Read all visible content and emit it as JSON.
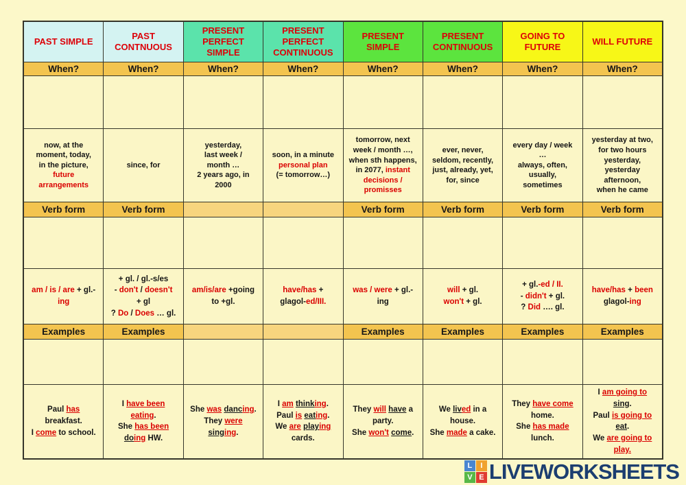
{
  "colors": {
    "page_bg": "#fcf8c9",
    "cell_bg": "#fbf6c6",
    "band_bg": "#f3c44f",
    "band_bg_light": "#f7d57e",
    "red_text": "#da0000",
    "black_text": "#151515",
    "header_red": "#dd0008",
    "border": "#35352a",
    "brand_navy": "#1c3e70"
  },
  "footer": {
    "brand": "LIVEWORKSHEETS",
    "logo_squares": [
      {
        "letter": "L",
        "color": "#4a86d1"
      },
      {
        "letter": "I",
        "color": "#f0a22e"
      },
      {
        "letter": "V",
        "color": "#58b847"
      },
      {
        "letter": "E",
        "color": "#e03c31"
      }
    ]
  },
  "table": {
    "band_labels": {
      "when": "When?",
      "verb": "Verb form",
      "examples": "Examples"
    },
    "columns": [
      {
        "name": "past-simple",
        "header": "PAST SIMPLE",
        "header_bg": "#d4f3f2",
        "has_verb_band": true,
        "has_examples_band": true,
        "time": [
          [
            [
              "now, at the",
              "k"
            ]
          ],
          [
            [
              "moment, today,",
              "k"
            ]
          ],
          [
            [
              "in the picture,",
              "k"
            ]
          ],
          [
            [
              "future",
              "r"
            ]
          ],
          [
            [
              "arrangements",
              "r"
            ]
          ]
        ],
        "verb_form": [
          [
            [
              "am / is / are",
              "r"
            ],
            [
              " + gl.-",
              "k"
            ]
          ],
          [
            [
              "ing",
              "r"
            ]
          ]
        ],
        "examples": [
          [
            [
              "Paul ",
              "k"
            ],
            [
              "has",
              "ru"
            ]
          ],
          [
            [
              "breakfast.",
              "k"
            ]
          ],
          [
            [
              "I ",
              "k"
            ],
            [
              "come",
              "ru"
            ],
            [
              " to school.",
              "k"
            ]
          ]
        ]
      },
      {
        "name": "past-continuous",
        "header": "PAST CONTNUOUS",
        "header_bg": "#d4f3f2",
        "has_verb_band": true,
        "has_examples_band": true,
        "time": [
          [
            [
              "since, for",
              "k"
            ]
          ]
        ],
        "verb_form": [
          [
            [
              "+ gl. / gl.-s/es",
              "k"
            ]
          ],
          [
            [
              "- ",
              "k"
            ],
            [
              "don't",
              "r"
            ],
            [
              " / ",
              "k"
            ],
            [
              "doesn't",
              "r"
            ]
          ],
          [
            [
              "+ gl",
              "k"
            ]
          ],
          [
            [
              "? ",
              "k"
            ],
            [
              "Do",
              "r"
            ],
            [
              " / ",
              "k"
            ],
            [
              "Does",
              "r"
            ],
            [
              " … gl.",
              "k"
            ]
          ]
        ],
        "examples": [
          [
            [
              "I ",
              "k"
            ],
            [
              "have been",
              "ru"
            ]
          ],
          [
            [
              "eating",
              "ru"
            ],
            [
              ".",
              "k"
            ]
          ],
          [
            [
              "She ",
              "k"
            ],
            [
              "has been",
              "ru"
            ]
          ],
          [
            [
              "do",
              "ku"
            ],
            [
              "ing",
              "ru"
            ],
            [
              " HW.",
              "k"
            ]
          ]
        ]
      },
      {
        "name": "present-perfect-simple",
        "header": "PRESENT PERFECT SIMPLE",
        "header_bg": "#5be3ab",
        "has_verb_band": false,
        "has_examples_band": false,
        "time": [
          [
            [
              "yesterday,",
              "k"
            ]
          ],
          [
            [
              "last week /",
              "k"
            ]
          ],
          [
            [
              "month …",
              "k"
            ]
          ],
          [
            [
              "2 years ago, in",
              "k"
            ]
          ],
          [
            [
              "2000",
              "k"
            ]
          ]
        ],
        "verb_form": [
          [
            [
              "am/is/are",
              "r"
            ],
            [
              " +going",
              "k"
            ]
          ],
          [
            [
              "to +gl.",
              "k"
            ]
          ]
        ],
        "examples": [
          [
            [
              "She ",
              "k"
            ],
            [
              "was",
              "ru"
            ],
            [
              " ",
              "k"
            ],
            [
              "danc",
              "ku"
            ],
            [
              "ing",
              "ru"
            ],
            [
              ".",
              "k"
            ]
          ],
          [
            [
              "They ",
              "k"
            ],
            [
              "were",
              "ru"
            ]
          ],
          [
            [
              "sing",
              "ku"
            ],
            [
              "ing",
              "ru"
            ],
            [
              ".",
              "k"
            ]
          ]
        ]
      },
      {
        "name": "present-perfect-continuous",
        "header": "PRESENT PERFECT CONTINUOUS",
        "header_bg": "#5be3ab",
        "has_verb_band": false,
        "has_examples_band": false,
        "time": [
          [
            [
              "soon, in a minute",
              "k"
            ]
          ],
          [
            [
              "personal plan",
              "r"
            ]
          ],
          [
            [
              "(= tomorrow…)",
              "k"
            ]
          ]
        ],
        "verb_form": [
          [
            [
              "have/has",
              "r"
            ],
            [
              " +",
              "k"
            ]
          ],
          [
            [
              "glagol-",
              "k"
            ],
            [
              "ed/III.",
              "r"
            ]
          ]
        ],
        "examples": [
          [
            [
              "I ",
              "k"
            ],
            [
              "am",
              "ru"
            ],
            [
              " ",
              "k"
            ],
            [
              "think",
              "ku"
            ],
            [
              "ing",
              "ru"
            ],
            [
              ".",
              "k"
            ]
          ],
          [
            [
              "Paul ",
              "k"
            ],
            [
              "is",
              "ru"
            ],
            [
              " ",
              "k"
            ],
            [
              "eat",
              "ku"
            ],
            [
              "ing",
              "ru"
            ],
            [
              ".",
              "k"
            ]
          ],
          [
            [
              "We ",
              "k"
            ],
            [
              "are",
              "ru"
            ],
            [
              " ",
              "k"
            ],
            [
              "play",
              "ku"
            ],
            [
              "ing",
              "ru"
            ]
          ],
          [
            [
              "cards.",
              "k"
            ]
          ]
        ]
      },
      {
        "name": "present-simple",
        "header": "PRESENT SIMPLE",
        "header_bg": "#5ce43e",
        "has_verb_band": true,
        "has_examples_band": true,
        "time": [
          [
            [
              "tomorrow, next",
              "k"
            ]
          ],
          [
            [
              "week / month …,",
              "k"
            ]
          ],
          [
            [
              "when sth happens,",
              "k"
            ]
          ],
          [
            [
              "in 2077, ",
              "k"
            ],
            [
              "instant",
              "r"
            ]
          ],
          [
            [
              "decisions /",
              "r"
            ]
          ],
          [
            [
              "promisses",
              "r"
            ]
          ]
        ],
        "verb_form": [
          [
            [
              "was / were",
              "r"
            ],
            [
              " + gl.-",
              "k"
            ]
          ],
          [
            [
              "ing",
              "k"
            ]
          ]
        ],
        "examples": [
          [
            [
              "They ",
              "k"
            ],
            [
              "will",
              "ru"
            ],
            [
              " ",
              "k"
            ],
            [
              "have",
              "ku"
            ],
            [
              " a",
              "k"
            ]
          ],
          [
            [
              "party.",
              "k"
            ]
          ],
          [
            [
              "She ",
              "k"
            ],
            [
              "won't",
              "ru"
            ],
            [
              " ",
              "k"
            ],
            [
              "come",
              "ku"
            ],
            [
              ".",
              "k"
            ]
          ]
        ]
      },
      {
        "name": "present-continuous",
        "header": "PRESENT CONTINUOUS",
        "header_bg": "#5ce43e",
        "has_verb_band": true,
        "has_examples_band": true,
        "time": [
          [
            [
              "ever, never,",
              "k"
            ]
          ],
          [
            [
              "seldom, recently,",
              "k"
            ]
          ],
          [
            [
              "just, already, yet,",
              "k"
            ]
          ],
          [
            [
              "for, since",
              "k"
            ]
          ]
        ],
        "verb_form": [
          [
            [
              "will",
              "r"
            ],
            [
              " + gl.",
              "k"
            ]
          ],
          [
            [
              "won't",
              "r"
            ],
            [
              " + gl.",
              "k"
            ]
          ]
        ],
        "examples": [
          [
            [
              "We ",
              "k"
            ],
            [
              "liv",
              "ku"
            ],
            [
              "ed",
              "ru"
            ],
            [
              " in a",
              "k"
            ]
          ],
          [
            [
              "house.",
              "k"
            ]
          ],
          [
            [
              "She ",
              "k"
            ],
            [
              "made",
              "ru"
            ],
            [
              " a cake.",
              "k"
            ]
          ]
        ]
      },
      {
        "name": "going-to-future",
        "header": "GOING TO FUTURE",
        "header_bg": "#f7f717",
        "has_verb_band": true,
        "has_examples_band": true,
        "time": [
          [
            [
              "every day / week",
              "k"
            ]
          ],
          [
            [
              "…",
              "k"
            ]
          ],
          [
            [
              "always, often,",
              "k"
            ]
          ],
          [
            [
              "usually,",
              "k"
            ]
          ],
          [
            [
              "sometimes",
              "k"
            ]
          ]
        ],
        "verb_form": [
          [
            [
              "+ gl.",
              "k"
            ],
            [
              "-ed / II.",
              "r"
            ]
          ],
          [
            [
              "- ",
              "k"
            ],
            [
              "didn't",
              "r"
            ],
            [
              " + gl.",
              "k"
            ]
          ],
          [
            [
              "? ",
              "k"
            ],
            [
              "Did",
              "r"
            ],
            [
              " …. gl.",
              "k"
            ]
          ]
        ],
        "examples": [
          [
            [
              "They ",
              "k"
            ],
            [
              "have come",
              "ru"
            ]
          ],
          [
            [
              "home.",
              "k"
            ]
          ],
          [
            [
              "She ",
              "k"
            ],
            [
              "has made",
              "ru"
            ]
          ],
          [
            [
              "lunch.",
              "k"
            ]
          ]
        ]
      },
      {
        "name": "will-future",
        "header": "WILL FUTURE",
        "header_bg": "#f7f717",
        "has_verb_band": true,
        "has_examples_band": true,
        "time": [
          [
            [
              "yesterday at two,",
              "k"
            ]
          ],
          [
            [
              "for two hours",
              "k"
            ]
          ],
          [
            [
              "yesterday,",
              "k"
            ]
          ],
          [
            [
              "yesterday",
              "k"
            ]
          ],
          [
            [
              "afternoon,",
              "k"
            ]
          ],
          [
            [
              "when he came",
              "k"
            ]
          ]
        ],
        "verb_form": [
          [
            [
              "have/has",
              "r"
            ],
            [
              " + ",
              "k"
            ],
            [
              "been",
              "r"
            ]
          ],
          [
            [
              "glagol-",
              "k"
            ],
            [
              "ing",
              "r"
            ]
          ]
        ],
        "examples": [
          [
            [
              "I ",
              "k"
            ],
            [
              "am going to",
              "ru"
            ]
          ],
          [
            [
              "sing",
              "ku"
            ],
            [
              ".",
              "k"
            ]
          ],
          [
            [
              "Paul ",
              "k"
            ],
            [
              "is going to",
              "ru"
            ]
          ],
          [
            [
              "eat",
              "ku"
            ],
            [
              ".",
              "k"
            ]
          ],
          [
            [
              "We ",
              "k"
            ],
            [
              "are going to",
              "ru"
            ]
          ],
          [
            [
              "play.",
              "ru"
            ]
          ]
        ]
      }
    ]
  }
}
